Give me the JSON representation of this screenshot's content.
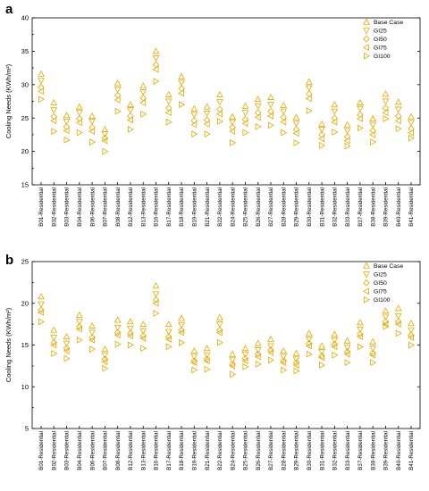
{
  "legend_series": [
    "Base Case",
    "GI25",
    "GI50",
    "GI75",
    "GI100"
  ],
  "marker_color": "#E6A800",
  "chart_data": [
    {
      "panel": "a",
      "type": "scatter",
      "ylabel": "Cooling Needs (KWh/m²)",
      "ylim": [
        15,
        40
      ],
      "yticks": [
        15,
        20,
        25,
        30,
        35,
        40
      ],
      "categories": [
        "B01-Residential",
        "B02-Residential",
        "B03-Residential",
        "B04-Residential",
        "B06-Residential",
        "B07-Residential",
        "B08-Residential",
        "B12-Residential",
        "B13-Residential",
        "B16-Residential",
        "B17-Residential",
        "B18-Residential",
        "B19-Residential",
        "B21-Residential",
        "B22-Residential",
        "B24-Residential",
        "B25-Residential",
        "B26-Residential",
        "B27-Residential",
        "B28-Residential",
        "B29-Residential",
        "B30-Residential",
        "B31-Residential",
        "B32-Residential",
        "B33-Residential",
        "B37-Residential",
        "B38-Residential",
        "B39-Residential",
        "B40-Residential",
        "B41-Residential"
      ],
      "series": [
        {
          "name": "Base Case",
          "values": [
            31.6,
            27.3,
            25.4,
            26.7,
            25.3,
            23.3,
            30.2,
            27.0,
            29.8,
            35.0,
            28.5,
            31.2,
            26.4,
            26.7,
            28.5,
            25.2,
            26.8,
            27.8,
            28.1,
            26.9,
            25.1,
            30.4,
            24.1,
            27.0,
            24.0,
            27.3,
            24.9,
            28.6,
            27.4,
            25.2
          ]
        },
        {
          "name": "GI25",
          "values": [
            30.6,
            26.2,
            24.5,
            25.8,
            24.5,
            22.6,
            29.3,
            26.2,
            28.9,
            34.0,
            27.5,
            30.3,
            25.5,
            25.7,
            27.4,
            24.4,
            25.8,
            26.8,
            27.0,
            26.0,
            24.2,
            29.5,
            23.3,
            26.0,
            23.1,
            26.4,
            24.0,
            27.5,
            26.3,
            24.3
          ]
        },
        {
          "name": "GI50",
          "values": [
            29.6,
            25.2,
            23.7,
            24.9,
            23.6,
            22.0,
            28.4,
            25.3,
            28.0,
            33.0,
            26.5,
            29.4,
            24.6,
            24.7,
            26.3,
            23.6,
            24.8,
            25.8,
            26.0,
            25.1,
            23.3,
            28.6,
            22.5,
            25.0,
            22.2,
            25.5,
            23.1,
            26.5,
            25.3,
            23.4
          ]
        },
        {
          "name": "GI75",
          "values": [
            29.0,
            24.6,
            23.1,
            24.3,
            23.0,
            21.6,
            27.7,
            24.7,
            27.3,
            32.3,
            25.8,
            28.7,
            24.0,
            24.1,
            25.6,
            23.0,
            24.2,
            25.1,
            25.3,
            24.4,
            22.7,
            27.9,
            21.9,
            24.4,
            21.6,
            24.9,
            22.5,
            25.8,
            24.6,
            22.8
          ]
        },
        {
          "name": "GI100",
          "values": [
            27.8,
            23.0,
            21.7,
            22.8,
            21.4,
            20.0,
            26.0,
            23.3,
            25.6,
            30.5,
            24.4,
            27.0,
            22.6,
            22.6,
            24.5,
            21.3,
            22.8,
            23.7,
            23.9,
            22.8,
            21.3,
            26.1,
            20.9,
            22.9,
            20.8,
            23.5,
            21.4,
            24.9,
            23.4,
            22.0
          ]
        }
      ]
    },
    {
      "panel": "b",
      "type": "scatter",
      "ylabel": "Cooling Needs (KWh/m²)",
      "ylim": [
        5,
        25
      ],
      "yticks": [
        5,
        10,
        15,
        20,
        25
      ],
      "categories": [
        "B01-Residential",
        "B02-Residential",
        "B03-Residential",
        "B04-Residential",
        "B06-Residential",
        "B07-Residential",
        "B08-Residential",
        "B12-Residential",
        "B13-Residential",
        "B16-Residential",
        "B17-Residential",
        "B18-Residential",
        "B19-Residential",
        "B21-Residential",
        "B22-Residential",
        "B24-Residential",
        "B25-Residential",
        "B26-Residential",
        "B27-Residential",
        "B28-Residential",
        "B29-Residential",
        "B30-Residential",
        "B31-Residential",
        "B32-Residential",
        "B33-Residential",
        "B37-Residential",
        "B38-Residential",
        "B39-Residential",
        "B40-Residential",
        "B41-Residential"
      ],
      "series": [
        {
          "name": "Base Case",
          "values": [
            20.8,
            16.8,
            16.0,
            18.6,
            17.3,
            14.5,
            18.0,
            17.8,
            17.5,
            22.1,
            17.5,
            18.2,
            14.3,
            14.6,
            18.3,
            13.9,
            14.6,
            15.2,
            15.7,
            14.3,
            14.0,
            16.4,
            14.9,
            16.3,
            15.5,
            17.7,
            15.4,
            19.1,
            19.4,
            17.6
          ]
        },
        {
          "name": "GI25",
          "values": [
            19.9,
            15.9,
            15.2,
            17.8,
            16.5,
            13.8,
            17.1,
            17.0,
            16.7,
            21.1,
            16.6,
            17.4,
            13.6,
            13.8,
            17.5,
            13.2,
            13.9,
            14.4,
            14.9,
            13.6,
            13.3,
            15.7,
            14.2,
            15.6,
            14.7,
            16.9,
            14.6,
            18.4,
            18.5,
            16.8
          ]
        },
        {
          "name": "GI50",
          "values": [
            19.2,
            15.3,
            14.6,
            17.2,
            15.9,
            13.3,
            16.5,
            16.4,
            16.1,
            20.4,
            16.0,
            16.8,
            13.1,
            13.3,
            16.8,
            12.7,
            13.4,
            13.9,
            14.4,
            13.1,
            12.9,
            15.2,
            13.7,
            15.1,
            14.2,
            16.3,
            14.0,
            17.8,
            17.8,
            16.2
          ]
        },
        {
          "name": "GI75",
          "values": [
            18.9,
            15.0,
            14.3,
            16.9,
            15.6,
            13.0,
            16.2,
            16.1,
            15.8,
            20.0,
            15.7,
            16.5,
            12.9,
            13.1,
            16.5,
            12.5,
            13.1,
            13.6,
            14.1,
            12.9,
            12.6,
            14.9,
            13.5,
            14.8,
            13.9,
            16.0,
            13.8,
            17.5,
            17.5,
            15.9
          ]
        },
        {
          "name": "GI100",
          "values": [
            17.8,
            14.0,
            13.4,
            15.6,
            14.5,
            12.2,
            15.1,
            15.0,
            14.6,
            18.8,
            14.8,
            15.3,
            12.0,
            12.1,
            15.3,
            11.5,
            12.4,
            12.7,
            13.2,
            12.0,
            11.9,
            13.9,
            12.6,
            13.8,
            12.9,
            14.8,
            12.9,
            17.2,
            16.4,
            15.0
          ]
        }
      ]
    }
  ]
}
